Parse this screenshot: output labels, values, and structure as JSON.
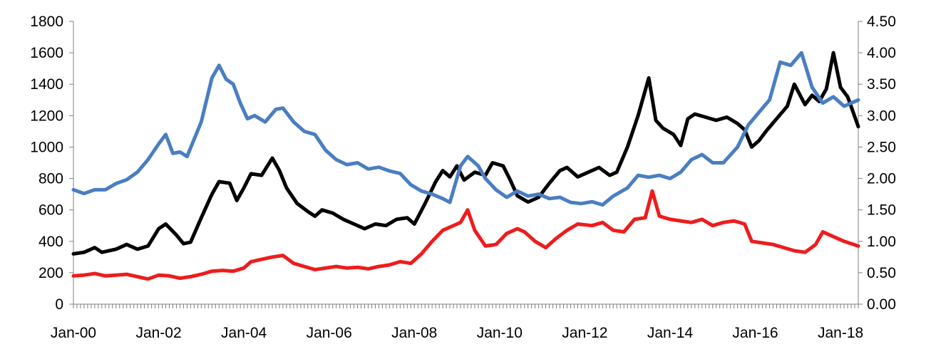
{
  "chart_data": {
    "type": "line",
    "title": "",
    "xlabel": "",
    "ylabel": "",
    "y2label": "",
    "grid": false,
    "legend": "none",
    "x_range": [
      "2000-01",
      "2018-06"
    ],
    "ylim_left": [
      0,
      1800
    ],
    "ylim_right": [
      0,
      4.5
    ],
    "x_tick_labels": [
      "Jan-00",
      "Jan-02",
      "Jan-04",
      "Jan-06",
      "Jan-08",
      "Jan-10",
      "Jan-12",
      "Jan-14",
      "Jan-16",
      "Jan-18"
    ],
    "x_tick_dates": [
      "2000-01",
      "2002-01",
      "2004-01",
      "2006-01",
      "2008-01",
      "2010-01",
      "2012-01",
      "2014-01",
      "2016-01",
      "2018-01"
    ],
    "y_left_ticks": [
      "0",
      "200",
      "400",
      "600",
      "800",
      "1000",
      "1200",
      "1400",
      "1600",
      "1800"
    ],
    "y_right_ticks": [
      "0.00",
      "0.50",
      "1.00",
      "1.50",
      "2.00",
      "2.50",
      "3.00",
      "3.50",
      "4.00",
      "4.50"
    ],
    "series": [
      {
        "color": "#000000",
        "axis": "left",
        "points": [
          [
            "2000-01",
            320
          ],
          [
            "2000-04",
            330
          ],
          [
            "2000-07",
            360
          ],
          [
            "2000-09",
            330
          ],
          [
            "2001-01",
            350
          ],
          [
            "2001-04",
            380
          ],
          [
            "2001-07",
            350
          ],
          [
            "2001-10",
            370
          ],
          [
            "2002-01",
            480
          ],
          [
            "2002-03",
            510
          ],
          [
            "2002-06",
            440
          ],
          [
            "2002-08",
            385
          ],
          [
            "2002-10",
            395
          ],
          [
            "2003-01",
            550
          ],
          [
            "2003-04",
            700
          ],
          [
            "2003-06",
            780
          ],
          [
            "2003-09",
            770
          ],
          [
            "2003-11",
            660
          ],
          [
            "2004-01",
            740
          ],
          [
            "2004-03",
            830
          ],
          [
            "2004-06",
            820
          ],
          [
            "2004-09",
            930
          ],
          [
            "2004-11",
            850
          ],
          [
            "2005-01",
            740
          ],
          [
            "2005-04",
            640
          ],
          [
            "2005-07",
            590
          ],
          [
            "2005-09",
            560
          ],
          [
            "2005-11",
            600
          ],
          [
            "2006-02",
            580
          ],
          [
            "2006-05",
            540
          ],
          [
            "2006-08",
            510
          ],
          [
            "2006-11",
            480
          ],
          [
            "2007-02",
            510
          ],
          [
            "2007-05",
            500
          ],
          [
            "2007-08",
            540
          ],
          [
            "2007-11",
            550
          ],
          [
            "2008-01",
            510
          ],
          [
            "2008-04",
            640
          ],
          [
            "2008-07",
            780
          ],
          [
            "2008-09",
            850
          ],
          [
            "2008-11",
            810
          ],
          [
            "2009-01",
            880
          ],
          [
            "2009-03",
            790
          ],
          [
            "2009-06",
            840
          ],
          [
            "2009-09",
            820
          ],
          [
            "2009-11",
            900
          ],
          [
            "2010-02",
            880
          ],
          [
            "2010-04",
            790
          ],
          [
            "2010-06",
            690
          ],
          [
            "2010-09",
            650
          ],
          [
            "2010-12",
            680
          ],
          [
            "2011-03",
            770
          ],
          [
            "2011-06",
            850
          ],
          [
            "2011-08",
            870
          ],
          [
            "2011-11",
            810
          ],
          [
            "2012-02",
            840
          ],
          [
            "2012-05",
            870
          ],
          [
            "2012-08",
            820
          ],
          [
            "2012-10",
            840
          ],
          [
            "2013-01",
            1000
          ],
          [
            "2013-04",
            1200
          ],
          [
            "2013-07",
            1440
          ],
          [
            "2013-09",
            1170
          ],
          [
            "2013-11",
            1120
          ],
          [
            "2014-02",
            1080
          ],
          [
            "2014-04",
            1010
          ],
          [
            "2014-06",
            1180
          ],
          [
            "2014-08",
            1210
          ],
          [
            "2014-11",
            1190
          ],
          [
            "2015-02",
            1170
          ],
          [
            "2015-05",
            1190
          ],
          [
            "2015-08",
            1150
          ],
          [
            "2015-10",
            1110
          ],
          [
            "2015-12",
            1000
          ],
          [
            "2016-02",
            1040
          ],
          [
            "2016-04",
            1100
          ],
          [
            "2016-07",
            1180
          ],
          [
            "2016-10",
            1260
          ],
          [
            "2016-12",
            1400
          ],
          [
            "2017-03",
            1270
          ],
          [
            "2017-05",
            1330
          ],
          [
            "2017-07",
            1290
          ],
          [
            "2017-09",
            1370
          ],
          [
            "2017-11",
            1600
          ],
          [
            "2018-01",
            1380
          ],
          [
            "2018-03",
            1320
          ],
          [
            "2018-06",
            1130
          ]
        ]
      },
      {
        "color": "#4a7ec2",
        "axis": "right",
        "points": [
          [
            "2000-01",
            1.82
          ],
          [
            "2000-04",
            1.76
          ],
          [
            "2000-07",
            1.82
          ],
          [
            "2000-10",
            1.82
          ],
          [
            "2001-01",
            1.92
          ],
          [
            "2001-04",
            1.98
          ],
          [
            "2001-07",
            2.1
          ],
          [
            "2001-10",
            2.3
          ],
          [
            "2002-01",
            2.55
          ],
          [
            "2002-03",
            2.7
          ],
          [
            "2002-05",
            2.4
          ],
          [
            "2002-07",
            2.42
          ],
          [
            "2002-09",
            2.35
          ],
          [
            "2003-01",
            2.9
          ],
          [
            "2003-04",
            3.6
          ],
          [
            "2003-06",
            3.8
          ],
          [
            "2003-08",
            3.58
          ],
          [
            "2003-10",
            3.5
          ],
          [
            "2003-12",
            3.2
          ],
          [
            "2004-02",
            2.95
          ],
          [
            "2004-04",
            3.0
          ],
          [
            "2004-07",
            2.9
          ],
          [
            "2004-10",
            3.1
          ],
          [
            "2004-12",
            3.12
          ],
          [
            "2005-03",
            2.9
          ],
          [
            "2005-06",
            2.75
          ],
          [
            "2005-09",
            2.7
          ],
          [
            "2005-12",
            2.45
          ],
          [
            "2006-03",
            2.3
          ],
          [
            "2006-06",
            2.22
          ],
          [
            "2006-09",
            2.25
          ],
          [
            "2006-12",
            2.15
          ],
          [
            "2007-03",
            2.18
          ],
          [
            "2007-06",
            2.12
          ],
          [
            "2007-09",
            2.08
          ],
          [
            "2007-12",
            1.9
          ],
          [
            "2008-03",
            1.8
          ],
          [
            "2008-06",
            1.75
          ],
          [
            "2008-09",
            1.68
          ],
          [
            "2008-11",
            1.62
          ],
          [
            "2009-02",
            2.2
          ],
          [
            "2009-04",
            2.35
          ],
          [
            "2009-07",
            2.2
          ],
          [
            "2009-09",
            2.0
          ],
          [
            "2009-12",
            1.82
          ],
          [
            "2010-03",
            1.7
          ],
          [
            "2010-06",
            1.8
          ],
          [
            "2010-09",
            1.72
          ],
          [
            "2010-12",
            1.75
          ],
          [
            "2011-03",
            1.68
          ],
          [
            "2011-06",
            1.7
          ],
          [
            "2011-09",
            1.62
          ],
          [
            "2011-12",
            1.6
          ],
          [
            "2012-03",
            1.63
          ],
          [
            "2012-06",
            1.58
          ],
          [
            "2012-09",
            1.72
          ],
          [
            "2013-01",
            1.85
          ],
          [
            "2013-04",
            2.05
          ],
          [
            "2013-07",
            2.02
          ],
          [
            "2013-10",
            2.05
          ],
          [
            "2014-01",
            2.0
          ],
          [
            "2014-04",
            2.1
          ],
          [
            "2014-07",
            2.3
          ],
          [
            "2014-10",
            2.38
          ],
          [
            "2015-01",
            2.25
          ],
          [
            "2015-04",
            2.25
          ],
          [
            "2015-08",
            2.5
          ],
          [
            "2015-11",
            2.85
          ],
          [
            "2016-02",
            3.05
          ],
          [
            "2016-05",
            3.25
          ],
          [
            "2016-08",
            3.85
          ],
          [
            "2016-11",
            3.8
          ],
          [
            "2017-02",
            4.0
          ],
          [
            "2017-05",
            3.45
          ],
          [
            "2017-08",
            3.2
          ],
          [
            "2017-11",
            3.3
          ],
          [
            "2018-02",
            3.15
          ],
          [
            "2018-04",
            3.2
          ],
          [
            "2018-06",
            3.25
          ]
        ]
      },
      {
        "color": "#ee1c1c",
        "axis": "left",
        "points": [
          [
            "2000-01",
            180
          ],
          [
            "2000-04",
            185
          ],
          [
            "2000-07",
            195
          ],
          [
            "2000-10",
            180
          ],
          [
            "2001-01",
            185
          ],
          [
            "2001-04",
            190
          ],
          [
            "2001-07",
            175
          ],
          [
            "2001-10",
            160
          ],
          [
            "2002-01",
            185
          ],
          [
            "2002-04",
            180
          ],
          [
            "2002-07",
            165
          ],
          [
            "2002-10",
            175
          ],
          [
            "2003-01",
            190
          ],
          [
            "2003-04",
            210
          ],
          [
            "2003-07",
            215
          ],
          [
            "2003-10",
            210
          ],
          [
            "2004-01",
            230
          ],
          [
            "2004-03",
            270
          ],
          [
            "2004-06",
            285
          ],
          [
            "2004-09",
            300
          ],
          [
            "2004-12",
            310
          ],
          [
            "2005-03",
            260
          ],
          [
            "2005-06",
            240
          ],
          [
            "2005-09",
            220
          ],
          [
            "2005-12",
            230
          ],
          [
            "2006-03",
            240
          ],
          [
            "2006-06",
            230
          ],
          [
            "2006-09",
            235
          ],
          [
            "2006-12",
            225
          ],
          [
            "2007-03",
            240
          ],
          [
            "2007-06",
            250
          ],
          [
            "2007-09",
            270
          ],
          [
            "2007-12",
            260
          ],
          [
            "2008-03",
            320
          ],
          [
            "2008-06",
            400
          ],
          [
            "2008-09",
            470
          ],
          [
            "2008-11",
            490
          ],
          [
            "2009-02",
            520
          ],
          [
            "2009-04",
            600
          ],
          [
            "2009-06",
            470
          ],
          [
            "2009-09",
            370
          ],
          [
            "2009-12",
            380
          ],
          [
            "2010-03",
            450
          ],
          [
            "2010-06",
            480
          ],
          [
            "2010-08",
            460
          ],
          [
            "2010-11",
            400
          ],
          [
            "2011-02",
            360
          ],
          [
            "2011-05",
            420
          ],
          [
            "2011-08",
            470
          ],
          [
            "2011-11",
            510
          ],
          [
            "2012-03",
            500
          ],
          [
            "2012-06",
            520
          ],
          [
            "2012-09",
            470
          ],
          [
            "2012-12",
            460
          ],
          [
            "2013-03",
            540
          ],
          [
            "2013-06",
            550
          ],
          [
            "2013-08",
            720
          ],
          [
            "2013-10",
            560
          ],
          [
            "2014-01",
            540
          ],
          [
            "2014-04",
            530
          ],
          [
            "2014-07",
            520
          ],
          [
            "2014-10",
            540
          ],
          [
            "2015-01",
            500
          ],
          [
            "2015-04",
            520
          ],
          [
            "2015-07",
            530
          ],
          [
            "2015-10",
            510
          ],
          [
            "2015-12",
            400
          ],
          [
            "2016-03",
            390
          ],
          [
            "2016-06",
            380
          ],
          [
            "2016-09",
            360
          ],
          [
            "2016-12",
            340
          ],
          [
            "2017-03",
            330
          ],
          [
            "2017-06",
            380
          ],
          [
            "2017-08",
            460
          ],
          [
            "2017-11",
            430
          ],
          [
            "2018-02",
            400
          ],
          [
            "2018-06",
            370
          ]
        ]
      }
    ]
  }
}
